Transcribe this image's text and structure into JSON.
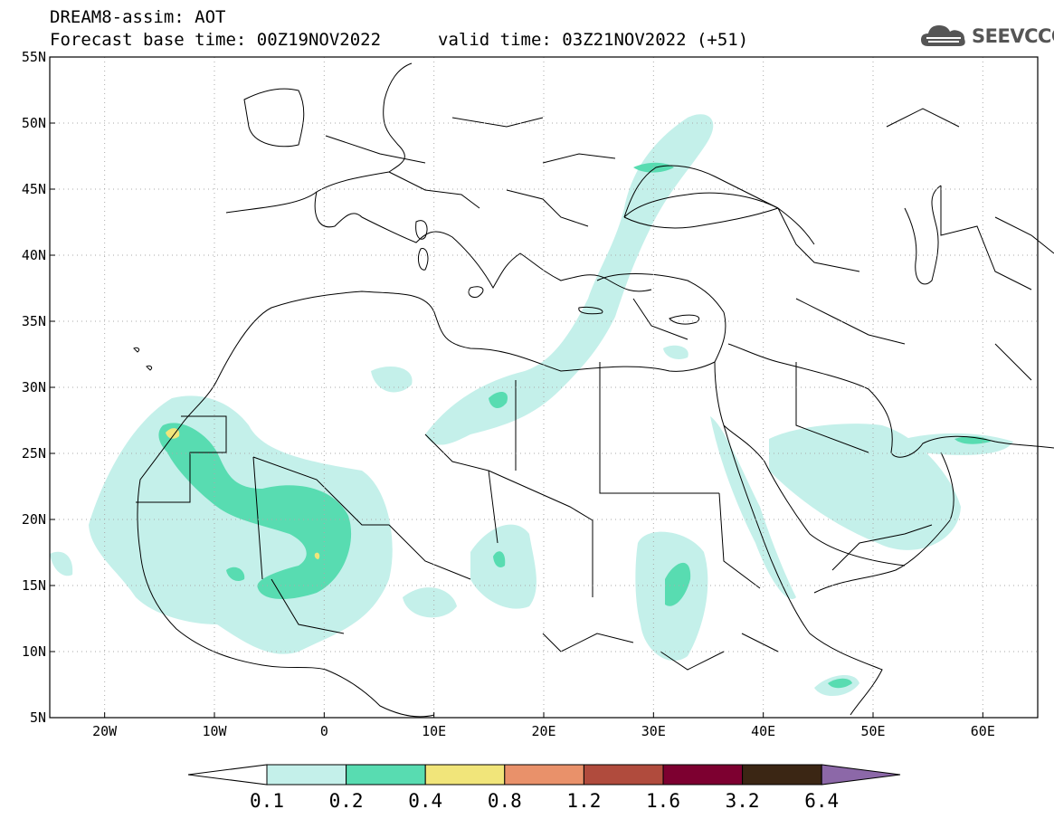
{
  "header": {
    "title_line1": "DREAM8-assim: AOT",
    "base_time": "Forecast base time: 00Z19NOV2022",
    "valid_time": "valid time: 03Z21NOV2022 (+51)"
  },
  "logo": {
    "text": "SEEVCCC",
    "icon": "cloud-icon"
  },
  "map": {
    "lon_range": [
      -25,
      65
    ],
    "lat_range": [
      5,
      55
    ],
    "lat_labels": [
      "55N",
      "50N",
      "45N",
      "40N",
      "35N",
      "30N",
      "25N",
      "20N",
      "15N",
      "10N",
      "5N"
    ],
    "lat_values": [
      55,
      50,
      45,
      40,
      35,
      30,
      25,
      20,
      15,
      10,
      5
    ],
    "lon_labels": [
      "20W",
      "10W",
      "0",
      "10E",
      "20E",
      "30E",
      "40E",
      "50E",
      "60E"
    ],
    "lon_values": [
      -20,
      -10,
      0,
      10,
      20,
      30,
      40,
      50,
      60
    ]
  },
  "colorbar": {
    "labels": [
      "0.1",
      "0.2",
      "0.4",
      "0.8",
      "1.2",
      "1.6",
      "3.2",
      "6.4"
    ],
    "colors": [
      "#c4f0ea",
      "#58dcb1",
      "#f1e57a",
      "#e9916a",
      "#b04b3d",
      "#7d0030",
      "#3b2614"
    ],
    "under_color": "#ffffff",
    "over_color": "#8c68a8"
  }
}
